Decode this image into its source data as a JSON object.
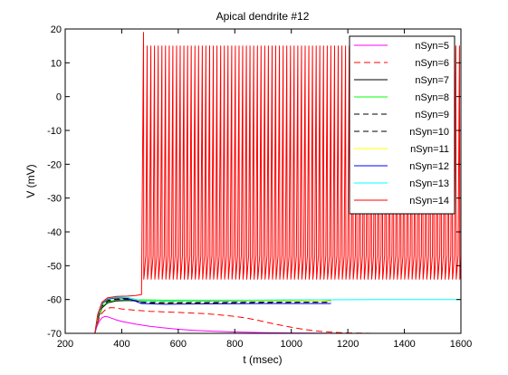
{
  "chart_data": {
    "type": "line",
    "title": "Apical dendrite #12",
    "xlabel": "t (msec)",
    "ylabel": "V (mV)",
    "xlim": [
      200,
      1600
    ],
    "ylim": [
      -70,
      20
    ],
    "xticks": [
      200,
      400,
      600,
      800,
      1000,
      1200,
      1400,
      1600
    ],
    "yticks": [
      20,
      10,
      0,
      -10,
      -20,
      -30,
      -40,
      -50,
      -60,
      -70
    ],
    "grid": false,
    "legend_position": "top-right",
    "series": [
      {
        "name": "nSyn=5",
        "color": "#ff00ff",
        "dash": "solid",
        "x": [
          200,
          305,
          312,
          320,
          330,
          340,
          350,
          360,
          380,
          400,
          450,
          500,
          550,
          600,
          650,
          700,
          800,
          900,
          1000,
          1200,
          1400,
          1600
        ],
        "y": [
          -70,
          -70,
          -68,
          -66.5,
          -65.4,
          -65,
          -65.1,
          -65.4,
          -66,
          -66.5,
          -67.3,
          -67.9,
          -68.4,
          -68.8,
          -69.1,
          -69.3,
          -69.6,
          -69.8,
          -69.9,
          -70,
          -70,
          -70
        ]
      },
      {
        "name": "nSyn=6",
        "color": "#ff0000",
        "dash": "7,4",
        "x": [
          200,
          305,
          312,
          320,
          330,
          345,
          360,
          380,
          400,
          450,
          500,
          600,
          700,
          800,
          850,
          900,
          950,
          1000,
          1050,
          1100,
          1150,
          1200,
          1300,
          1400,
          1600
        ],
        "y": [
          -70,
          -70,
          -67.5,
          -65.5,
          -64,
          -62.8,
          -62.4,
          -62.5,
          -62.8,
          -63.2,
          -63.5,
          -63.8,
          -64.2,
          -65,
          -65.6,
          -66.5,
          -67.4,
          -68.2,
          -68.9,
          -69.4,
          -69.7,
          -69.9,
          -70,
          -70,
          -70
        ]
      },
      {
        "name": "nSyn=7",
        "color": "#000000",
        "dash": "solid",
        "x": [
          200,
          305,
          315,
          330,
          350,
          380,
          420,
          470,
          550,
          700,
          900,
          1100,
          1140
        ],
        "y": [
          -70,
          -70,
          -66,
          -62.5,
          -61,
          -60.4,
          -60.3,
          -60.5,
          -60.6,
          -60.4,
          -60.4,
          -60.5,
          -60.4
        ]
      },
      {
        "name": "nSyn=8",
        "color": "#00ff00",
        "dash": "solid",
        "x": [
          200,
          305,
          315,
          330,
          350,
          380,
          420,
          470,
          550,
          700,
          900,
          1100,
          1140
        ],
        "y": [
          -70,
          -70,
          -65.8,
          -62.2,
          -60.7,
          -60.1,
          -60,
          -60.1,
          -60.2,
          -60.2,
          -60.2,
          -60.1,
          -60.1
        ]
      },
      {
        "name": "nSyn=9",
        "color": "#000000",
        "dash": "6,4",
        "x": [
          200,
          305,
          315,
          330,
          350,
          380,
          420,
          470,
          550,
          700,
          900,
          1100,
          1140
        ],
        "y": [
          -70,
          -70,
          -65.5,
          -62,
          -60.5,
          -60,
          -59.9,
          -60.6,
          -60.9,
          -60.8,
          -60.7,
          -60.6,
          -60.6
        ]
      },
      {
        "name": "nSyn=10",
        "color": "#000000",
        "dash": "6,4",
        "x": [
          200,
          305,
          315,
          330,
          350,
          380,
          420,
          470,
          550,
          700,
          900,
          1100,
          1140
        ],
        "y": [
          -70,
          -70,
          -65.3,
          -61.8,
          -60.3,
          -59.8,
          -59.7,
          -60.9,
          -61.1,
          -61,
          -60.9,
          -60.8,
          -60.8
        ]
      },
      {
        "name": "nSyn=11",
        "color": "#ffff00",
        "dash": "solid",
        "x": [
          200,
          305,
          315,
          330,
          350,
          380,
          420,
          470,
          550,
          700,
          900,
          1100,
          1140
        ],
        "y": [
          -70,
          -70,
          -65,
          -61.5,
          -60,
          -59.6,
          -59.5,
          -60.4,
          -60.7,
          -60.6,
          -60.5,
          -60.5,
          -60.5
        ]
      },
      {
        "name": "nSyn=12",
        "color": "#0000ff",
        "dash": "solid",
        "x": [
          200,
          305,
          315,
          330,
          350,
          380,
          420,
          470,
          550,
          700,
          900,
          1100,
          1140
        ],
        "y": [
          -70,
          -70,
          -64.8,
          -61.3,
          -59.9,
          -59.5,
          -59.6,
          -61.2,
          -61.4,
          -61.3,
          -61.2,
          -61.2,
          -61.2
        ]
      },
      {
        "name": "nSyn=13",
        "color": "#00ffff",
        "dash": "solid",
        "x": [
          200,
          305,
          315,
          330,
          350,
          380,
          420,
          470,
          550,
          700,
          900,
          1100,
          1300,
          1600
        ],
        "y": [
          -70,
          -70,
          -64.6,
          -61,
          -59.7,
          -59.3,
          -59.4,
          -60.3,
          -60.4,
          -60.3,
          -60.2,
          -60.1,
          -60,
          -60
        ]
      },
      {
        "name": "nSyn=14",
        "color": "#ff0000",
        "dash": "solid",
        "x": [
          200,
          305,
          315,
          330,
          350,
          380,
          420,
          450,
          470
        ],
        "y": [
          -70,
          -70,
          -64.4,
          -60.8,
          -59.5,
          -59.1,
          -59,
          -58.8,
          -58.5
        ],
        "spikes": {
          "first": 477,
          "period": 13,
          "end": 1600,
          "peak": 15,
          "first_peak": 19,
          "trough": -54
        }
      }
    ]
  }
}
